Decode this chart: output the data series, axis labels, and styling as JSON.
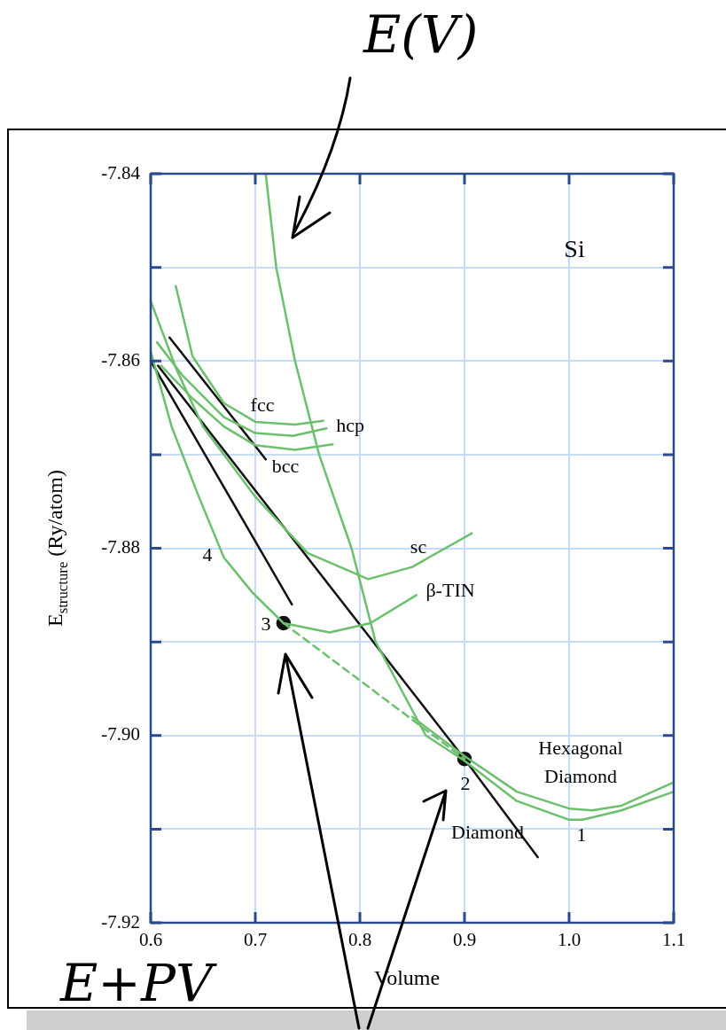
{
  "chart_data": {
    "type": "line",
    "xlabel": "Volume",
    "ylabel": "E$_{structure}$ (Ry/atom)",
    "xlim": [
      0.6,
      1.1
    ],
    "xticks": [
      0.6,
      0.7,
      0.8,
      0.9,
      {
        "value": 1,
        "label": "1.0"
      },
      1.1
    ],
    "ylim": [
      -7.92,
      -7.84
    ],
    "yticks": [
      -7.84,
      {
        "value": -7.85,
        "label": null
      },
      -7.86,
      {
        "value": -7.87,
        "label": null
      },
      -7.88,
      {
        "value": -7.89,
        "label": null
      },
      {
        "value": -7.9,
        "label": "-7.90"
      },
      {
        "value": -7.91,
        "label": null
      },
      -7.92
    ],
    "grid": true,
    "legend": false,
    "marker": "none",
    "line_style": "solid",
    "series": [
      {
        "color": "#6cbf6c",
        "x": [
          0.71,
          0.72,
          0.738,
          0.761,
          0.792,
          0.815,
          0.863,
          0.9,
          0.95,
          1.0,
          1.013,
          1.05,
          1.1
        ],
        "values": [
          -7.84,
          -7.85,
          -7.86,
          -7.87,
          -7.88,
          -7.89,
          -7.9,
          -7.9027,
          -7.907,
          -7.909,
          -7.909,
          -7.908,
          -7.906
        ]
      },
      {
        "color": "#6cbf6c",
        "x": [
          0.85,
          0.9,
          0.95,
          1.0,
          1.022,
          1.05,
          1.1
        ],
        "values": [
          -7.898,
          -7.9022,
          -7.906,
          -7.9078,
          -7.908,
          -7.9075,
          -7.905
        ]
      },
      {
        "color": "#6cbf6c",
        "x": [
          0.6,
          0.62,
          0.646,
          0.67,
          0.697,
          0.727,
          0.771,
          0.81,
          0.854
        ],
        "values": [
          -7.859,
          -7.867,
          -7.8745,
          -7.881,
          -7.8847,
          -7.888,
          -7.889,
          -7.888,
          -7.885
        ]
      },
      {
        "color": "#6cbf6c",
        "x": [
          0.6,
          0.625,
          0.65,
          0.7,
          0.75,
          0.808,
          0.85,
          0.907
        ],
        "values": [
          -7.8536,
          -7.861,
          -7.867,
          -7.8745,
          -7.8805,
          -7.8833,
          -7.882,
          -7.8784
        ]
      },
      {
        "color": "#6cbf6c",
        "x": [
          0.624,
          0.64,
          0.67,
          0.7,
          0.738,
          0.765
        ],
        "values": [
          -7.852,
          -7.8595,
          -7.8645,
          -7.8665,
          -7.8668,
          -7.8664
        ]
      },
      {
        "color": "#6cbf6c",
        "x": [
          0.606,
          0.63,
          0.67,
          0.7,
          0.736,
          0.768
        ],
        "values": [
          -7.858,
          -7.8615,
          -7.866,
          -7.8677,
          -7.868,
          -7.8672
        ]
      },
      {
        "color": "#6cbf6c",
        "x": [
          0.61,
          0.64,
          0.67,
          0.7,
          0.738,
          0.774
        ],
        "values": [
          -7.8605,
          -7.864,
          -7.867,
          -7.869,
          -7.8695,
          -7.8689
        ]
      },
      {
        "color": "#6cbf6c",
        "line_style": "dashed",
        "x": [
          0.727,
          0.9
        ],
        "values": [
          -7.888,
          -7.9025
        ]
      },
      {
        "color": "#111111",
        "x": [
          0.607,
          0.9,
          0.97
        ],
        "values": [
          -7.8605,
          -7.9025,
          -7.913
        ]
      },
      {
        "color": "#111111",
        "x": [
          0.6,
          0.735
        ],
        "values": [
          -7.86,
          -7.886
        ]
      },
      {
        "color": "#111111",
        "x": [
          0.618,
          0.71
        ],
        "values": [
          -7.8575,
          -7.8705
        ]
      },
      {
        "color": "#111111",
        "type": "scatter",
        "marker": "circle",
        "x": [
          0.727,
          0.9
        ],
        "values": [
          -7.888,
          -7.9025
        ]
      }
    ],
    "annotations": [
      "Si",
      "fcc",
      "hcp",
      "bcc",
      "sc",
      "β-TIN",
      "Hexagonal",
      "Diamond",
      "Diamond",
      "1",
      "2",
      "3",
      "4",
      "E(V)",
      "E+PV"
    ]
  }
}
